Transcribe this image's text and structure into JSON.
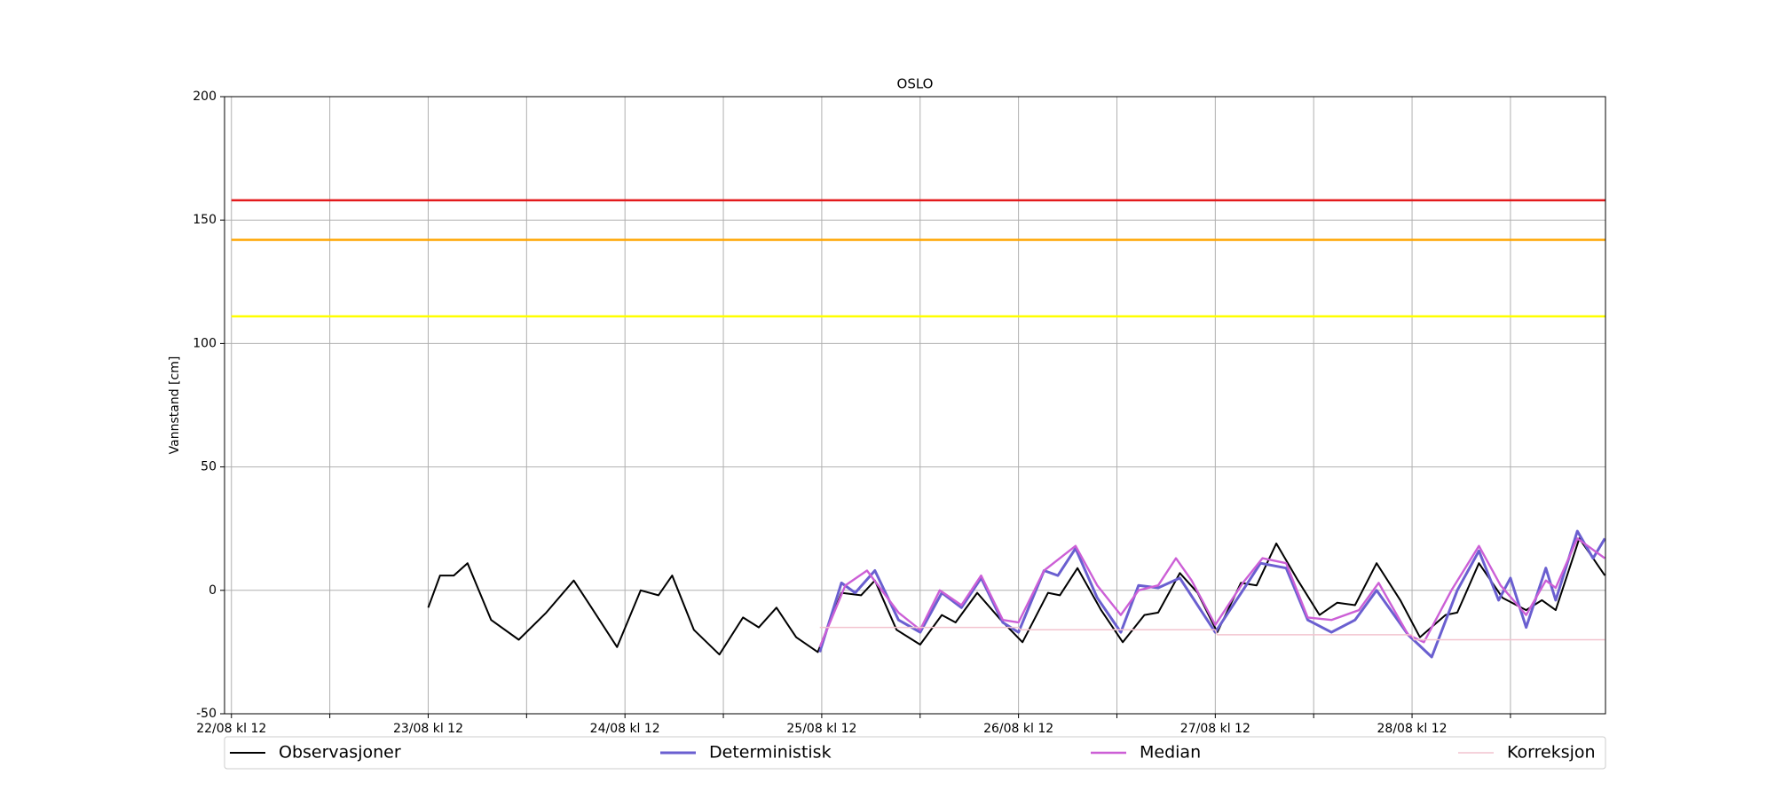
{
  "chart_data": {
    "type": "line",
    "title": "OSLO",
    "ylabel": "Vannstand [cm]",
    "xlim": [
      22.465,
      29.483
    ],
    "xticks": [
      {
        "value": 22.5,
        "label": "22/08 kl 12"
      },
      {
        "value": 23.5,
        "label": "23/08 kl 12"
      },
      {
        "value": 24.5,
        "label": "24/08 kl 12"
      },
      {
        "value": 25.5,
        "label": "25/08 kl 12"
      },
      {
        "value": 26.5,
        "label": "26/08 kl 12"
      },
      {
        "value": 27.5,
        "label": "27/08 kl 12"
      },
      {
        "value": 28.5,
        "label": "28/08 kl 12"
      }
    ],
    "xminorticks": [
      23,
      24,
      25,
      26,
      27,
      28,
      29
    ],
    "ylim": [
      -50,
      200
    ],
    "yticks": [
      -50,
      0,
      50,
      100,
      150,
      200
    ],
    "grid": true,
    "hlines": [
      {
        "value": 158,
        "color": "#e31a1c"
      },
      {
        "value": 142,
        "color": "#ffa500"
      },
      {
        "value": 111,
        "color": "#ffff00"
      }
    ],
    "series": [
      {
        "name": "Observasjoner",
        "color": "#000000",
        "width": 2,
        "x": [
          23.5,
          23.56,
          23.63,
          23.7,
          23.82,
          23.96,
          24.1,
          24.24,
          24.33,
          24.46,
          24.58,
          24.67,
          24.74,
          24.85,
          24.98,
          25.1,
          25.18,
          25.27,
          25.37,
          25.48,
          25.6,
          25.7,
          25.77,
          25.88,
          26.0,
          26.11,
          26.18,
          26.29,
          26.41,
          26.52,
          26.65,
          26.71,
          26.8,
          26.92,
          27.03,
          27.14,
          27.21,
          27.32,
          27.41,
          27.51,
          27.63,
          27.71,
          27.81,
          27.92,
          28.03,
          28.12,
          28.21,
          28.32,
          28.44,
          28.54,
          28.67,
          28.73,
          28.84,
          28.96,
          29.08,
          29.16,
          29.23,
          29.35,
          29.42,
          29.48
        ],
        "values": [
          -7,
          6,
          6,
          11,
          -12,
          -20,
          -9,
          4,
          -7,
          -23,
          0,
          -2,
          6,
          -16,
          -26,
          -11,
          -15,
          -7,
          -19,
          -25,
          -1,
          -2,
          4,
          -16,
          -22,
          -10,
          -13,
          -1,
          -12,
          -21,
          -1,
          -2,
          9,
          -8,
          -21,
          -10,
          -9,
          7,
          -1,
          -17,
          3,
          2,
          19,
          4,
          -10,
          -5,
          -6,
          11,
          -4,
          -19,
          -10,
          -9,
          11,
          -3,
          -8,
          -4,
          -8,
          21,
          13,
          6
        ]
      },
      {
        "name": "Deterministisk",
        "color": "#6a5fd0",
        "width": 3,
        "x": [
          25.49,
          25.6,
          25.67,
          25.77,
          25.89,
          26.0,
          26.11,
          26.21,
          26.31,
          26.42,
          26.5,
          26.63,
          26.7,
          26.79,
          26.9,
          27.02,
          27.11,
          27.21,
          27.32,
          27.5,
          27.64,
          27.73,
          27.86,
          27.97,
          28.09,
          28.21,
          28.32,
          28.48,
          28.6,
          28.73,
          28.84,
          28.94,
          29.0,
          29.08,
          29.18,
          29.23,
          29.34,
          29.42,
          29.48
        ],
        "values": [
          -25,
          3,
          -1,
          8,
          -12,
          -17,
          -1,
          -7,
          5,
          -13,
          -17,
          8,
          6,
          17,
          -3,
          -17,
          2,
          1,
          5,
          -17,
          0,
          11,
          9,
          -12,
          -17,
          -12,
          0,
          -18,
          -27,
          0,
          16,
          -4,
          5,
          -15,
          9,
          -4,
          24,
          13,
          21
        ]
      },
      {
        "name": "Median",
        "color": "#cc5fd6",
        "width": 2.4,
        "x": [
          25.49,
          25.62,
          25.73,
          25.89,
          26.0,
          26.1,
          26.21,
          26.31,
          26.42,
          26.5,
          26.63,
          26.79,
          26.9,
          27.02,
          27.11,
          27.21,
          27.3,
          27.38,
          27.5,
          27.64,
          27.74,
          27.86,
          27.97,
          28.09,
          28.23,
          28.33,
          28.48,
          28.56,
          28.7,
          28.84,
          28.95,
          29.08,
          29.18,
          29.23,
          29.34,
          29.48
        ],
        "values": [
          -23,
          2,
          8,
          -9,
          -16,
          0,
          -6,
          6,
          -12,
          -13,
          8,
          18,
          2,
          -10,
          0,
          2,
          13,
          4,
          -14,
          3,
          13,
          11,
          -11,
          -12,
          -8,
          3,
          -18,
          -21,
          0,
          18,
          2,
          -10,
          4,
          1,
          21,
          13
        ]
      },
      {
        "name": "Korreksjon",
        "color": "#f2c4cf",
        "width": 1.5,
        "x": [
          25.49,
          26.5,
          26.51,
          27.5,
          27.51,
          28.5,
          28.51,
          29.48
        ],
        "values": [
          -15,
          -15,
          -16,
          -16,
          -18,
          -18,
          -20,
          -20
        ]
      }
    ]
  }
}
